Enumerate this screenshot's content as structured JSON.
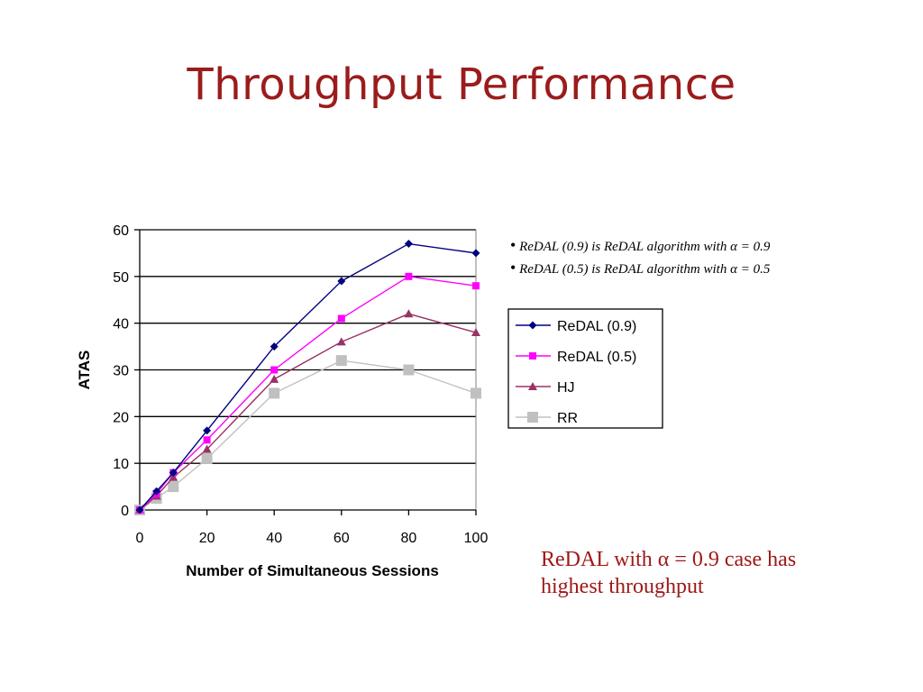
{
  "slide": {
    "title": "Throughput Performance",
    "notes": [
      {
        "bullet": "•",
        "text": "ReDAL (0.9) is ReDAL algorithm with α = 0.9"
      },
      {
        "bullet": "•",
        "text": "ReDAL (0.5) is ReDAL algorithm with α = 0.5"
      }
    ],
    "conclusion_line1": "ReDAL with α = 0.9 case has",
    "conclusion_line2": "highest throughput"
  },
  "chart_data": {
    "type": "line",
    "title": "",
    "xlabel": "Number of Simultaneous Sessions",
    "ylabel": "ATAS",
    "xlim": [
      0,
      100
    ],
    "ylim": [
      0,
      60
    ],
    "x_ticks": [
      0,
      20,
      40,
      60,
      80,
      100
    ],
    "y_ticks": [
      0,
      10,
      20,
      30,
      40,
      50,
      60
    ],
    "grid": "horizontal",
    "legend_position": "right",
    "x": [
      0,
      5,
      10,
      20,
      40,
      60,
      80,
      100
    ],
    "series": [
      {
        "name": "ReDAL (0.9)",
        "color": "#000080",
        "marker": "diamond",
        "values": [
          0,
          4,
          8,
          17,
          35,
          49,
          57,
          55
        ]
      },
      {
        "name": "ReDAL (0.5)",
        "color": "#ff00ff",
        "marker": "square",
        "values": [
          0,
          3.5,
          8,
          15,
          30,
          41,
          50,
          48
        ]
      },
      {
        "name": "HJ",
        "color": "#993366",
        "marker": "triangle",
        "values": [
          0,
          3,
          7,
          13,
          28,
          36,
          42,
          38
        ]
      },
      {
        "name": "RR",
        "color": "#c0c0c0",
        "marker": "square",
        "values": [
          0,
          2.5,
          5,
          11,
          25,
          32,
          30,
          25
        ]
      }
    ]
  }
}
